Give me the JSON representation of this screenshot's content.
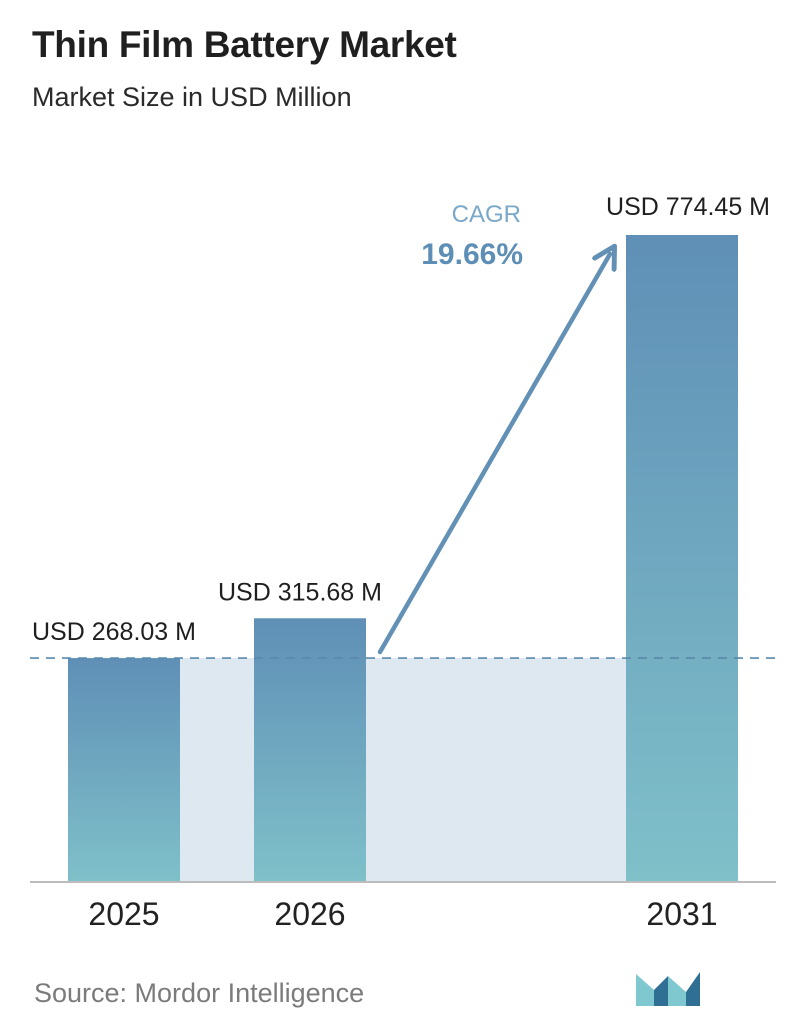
{
  "title": "Thin Film Battery Market",
  "subtitle": "Market Size in USD Million",
  "source": "Source: Mordor Intelligence",
  "cagr": {
    "label": "CAGR",
    "value": "19.66%"
  },
  "colors": {
    "bar_top": "#5f8fb6",
    "bar_bottom": "#7fc0c9",
    "band": "#dde8f1",
    "dashed_line": "#5a8aad",
    "arrow": "#6390b5",
    "cagr_label": "#7aa8c8",
    "cagr_value": "#5d8eb5",
    "axis": "#bcbcbc",
    "logo_dark": "#2f6f94",
    "logo_light": "#7fc8cf"
  },
  "chart_data": {
    "type": "bar",
    "categories": [
      "2025",
      "2026",
      "2031"
    ],
    "values": [
      268.03,
      315.68,
      774.45
    ],
    "value_labels": [
      "USD 268.03 M",
      "USD 315.68 M",
      "USD 774.45 M"
    ],
    "title": "Thin Film Battery Market",
    "subtitle": "Market Size in USD Million",
    "xlabel": "",
    "ylabel": "",
    "ylim": [
      0,
      774.45
    ],
    "grid": false,
    "legend": "none",
    "annotations": [
      "CAGR 19.66%"
    ]
  }
}
